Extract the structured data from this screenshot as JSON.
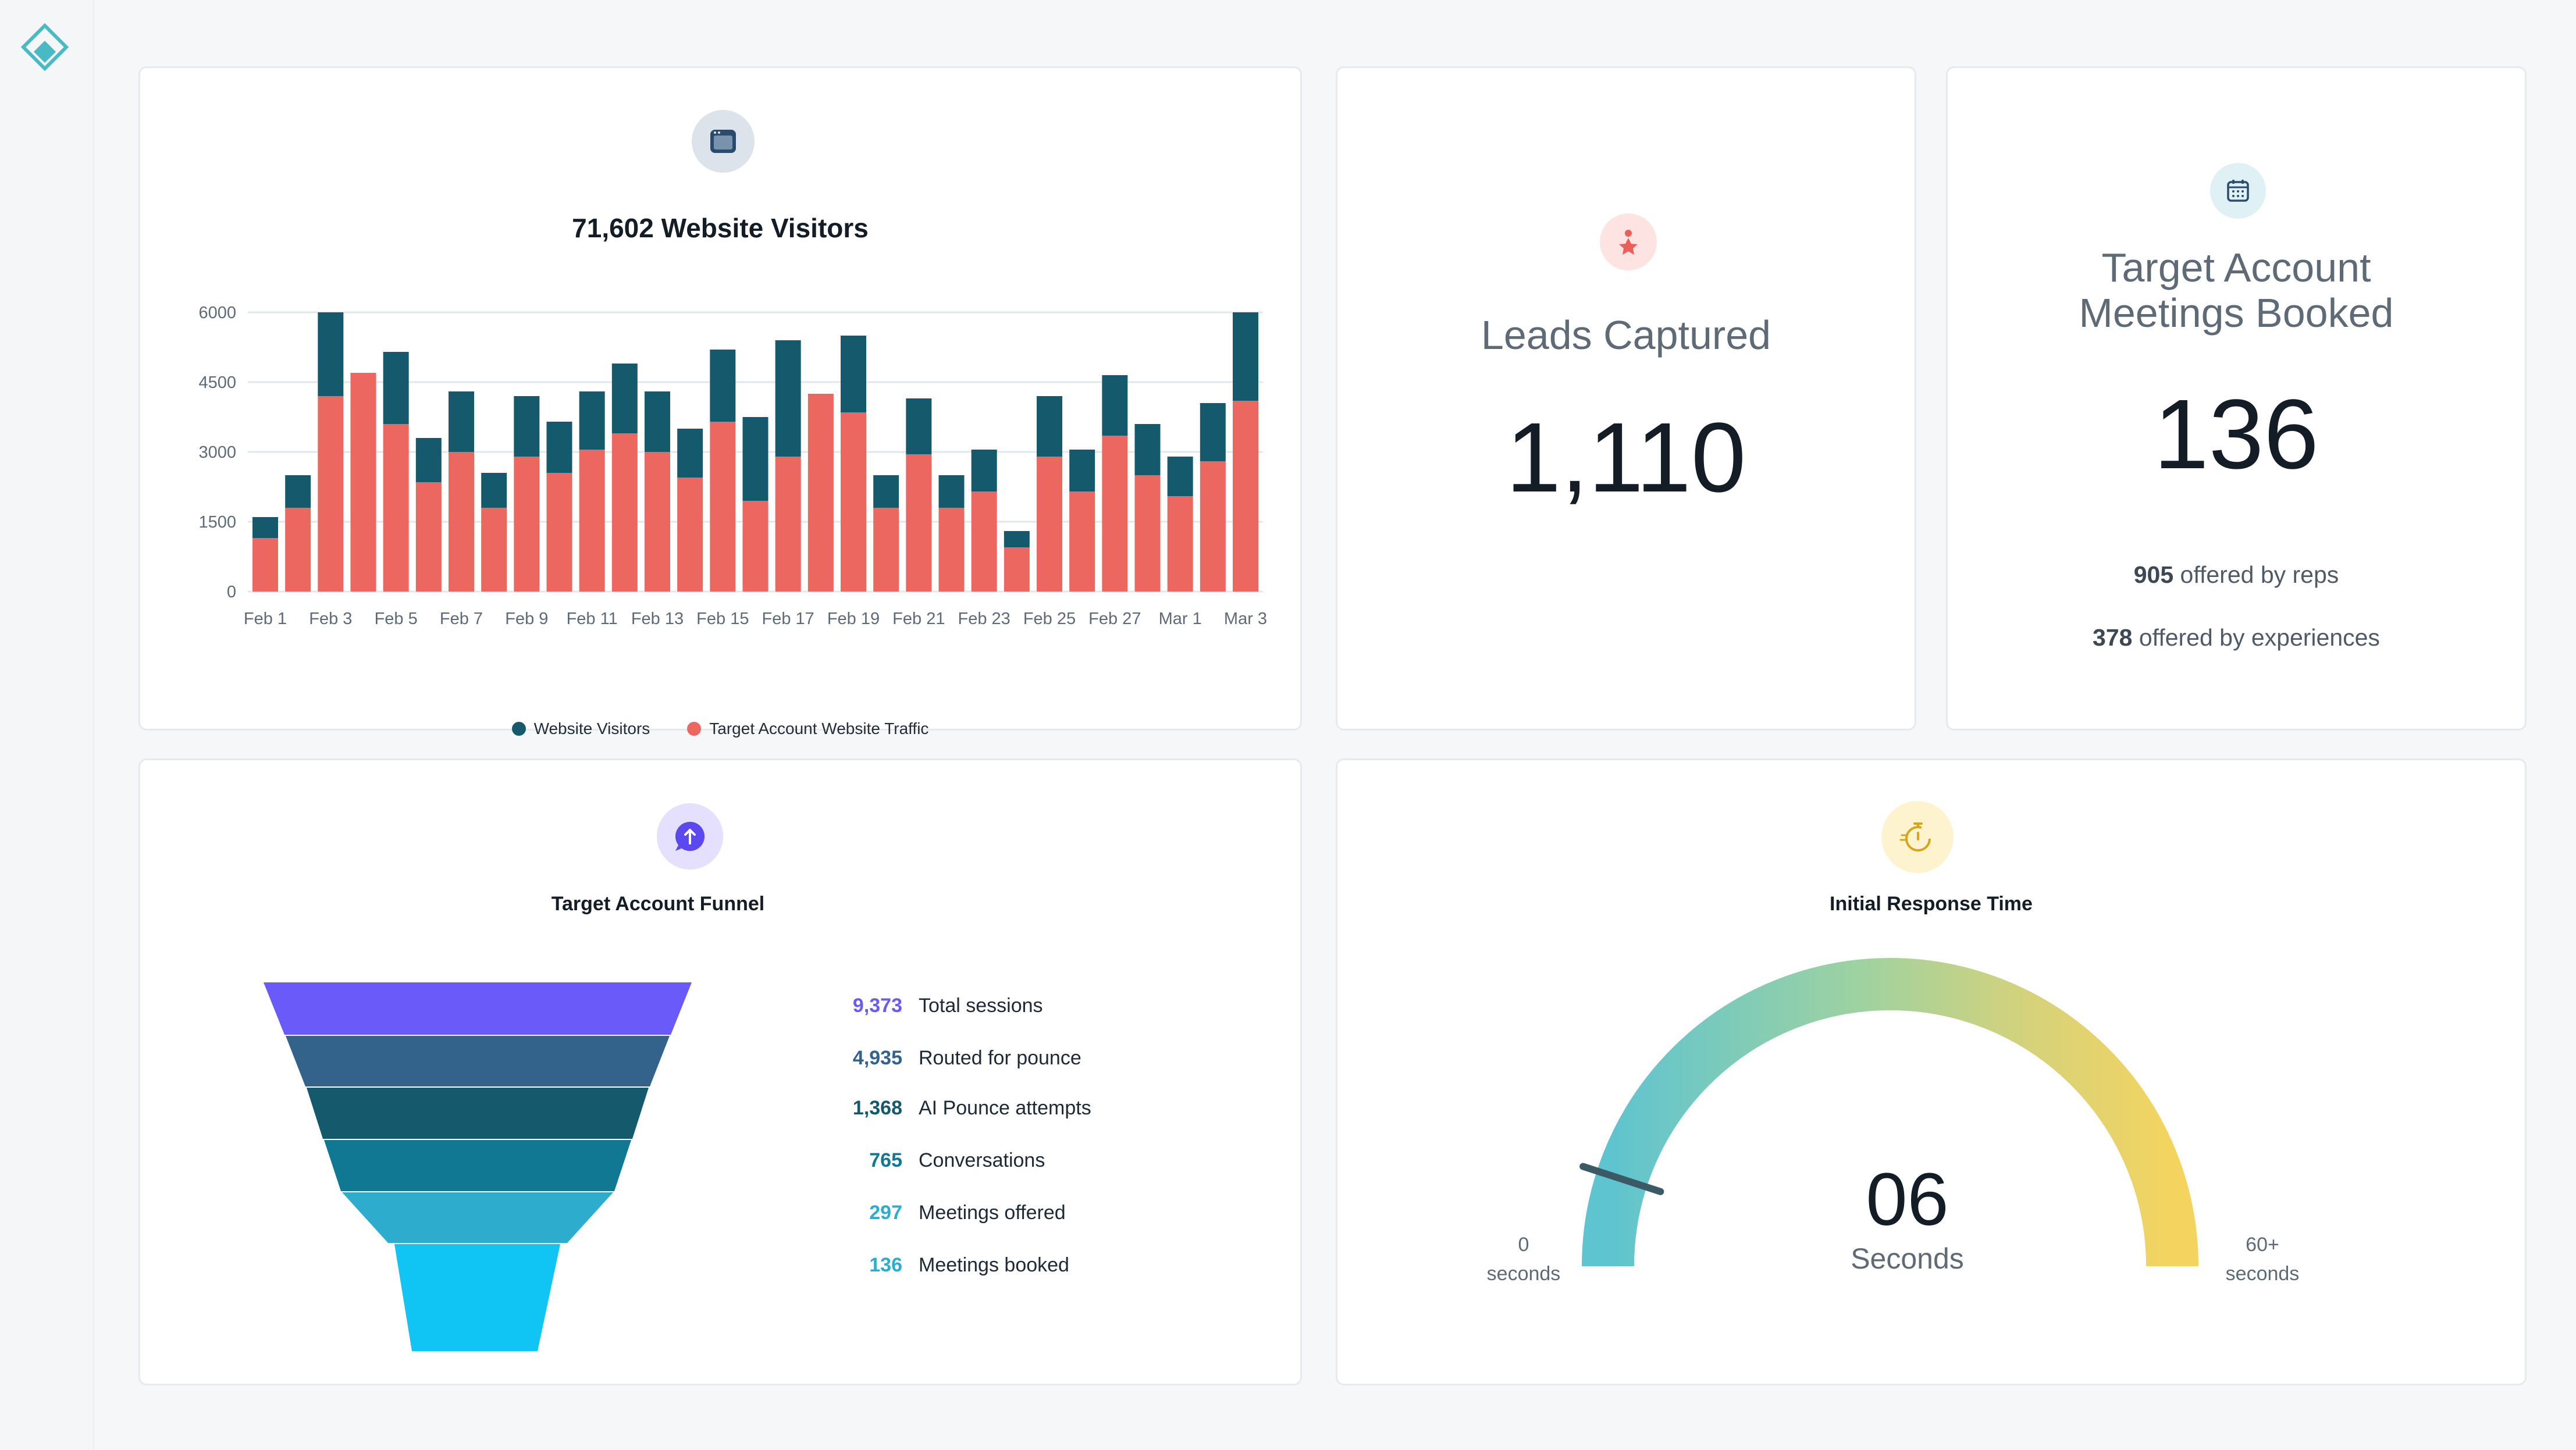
{
  "visitors_card": {
    "title": "71,602 Website Visitors",
    "icon": "browser-window-icon",
    "legend": [
      {
        "label": "Website Visitors",
        "color": "#155a6c"
      },
      {
        "label": "Target Account Website Traffic",
        "color": "#eb6760"
      }
    ]
  },
  "chart_data": {
    "type": "bar",
    "stacked": true,
    "x_tick_labels": [
      "Feb 1",
      "Feb 3",
      "Feb 5",
      "Feb 7",
      "Feb 9",
      "Feb 11",
      "Feb 13",
      "Feb 15",
      "Feb 17",
      "Feb 19",
      "Feb 21",
      "Feb 23",
      "Feb 25",
      "Feb 27",
      "Mar 1",
      "Mar 3"
    ],
    "categories": [
      "Feb 1",
      "Feb 2",
      "Feb 3",
      "Feb 4",
      "Feb 5",
      "Feb 6",
      "Feb 7",
      "Feb 8",
      "Feb 9",
      "Feb 10",
      "Feb 11",
      "Feb 12",
      "Feb 13",
      "Feb 14",
      "Feb 15",
      "Feb 16",
      "Feb 17",
      "Feb 18",
      "Feb 19",
      "Feb 20",
      "Feb 21",
      "Feb 22",
      "Feb 23",
      "Feb 24",
      "Feb 25",
      "Feb 26",
      "Feb 27",
      "Feb 28",
      "Mar 1",
      "Mar 2",
      "Mar 3"
    ],
    "y_ticks": [
      "6000",
      "4500",
      "3000",
      "1500",
      "0"
    ],
    "ylim": [
      0,
      6000
    ],
    "grid": true,
    "series": [
      {
        "name": "Target Account Website Traffic",
        "color": "#eb6760",
        "values": [
          1150,
          1800,
          4200,
          4700,
          3600,
          2350,
          3000,
          1800,
          2900,
          2550,
          3050,
          3400,
          3000,
          2450,
          3650,
          1950,
          2900,
          4250,
          3850,
          1800,
          2950,
          1800,
          2150,
          950,
          2900,
          2150,
          3350,
          2500,
          2050,
          2800,
          4100
        ]
      },
      {
        "name": "Website Visitors",
        "color": "#155a6c",
        "values": [
          450,
          700,
          1800,
          0,
          1550,
          950,
          1300,
          750,
          1300,
          1100,
          1250,
          1500,
          1300,
          1050,
          1550,
          1800,
          2500,
          0,
          1650,
          700,
          1200,
          700,
          900,
          350,
          1300,
          900,
          1300,
          1100,
          850,
          1250,
          1900
        ]
      }
    ]
  },
  "leads_card": {
    "title": "Leads Captured",
    "value": "1,110",
    "icon": "person-star-icon"
  },
  "meetings_card": {
    "title_line1": "Target Account",
    "title_line2": "Meetings Booked",
    "value": "136",
    "reps_value": "905",
    "reps_label": " offered by reps",
    "exp_value": "378",
    "exp_label": " offered by experiences",
    "icon": "calendar-icon"
  },
  "funnel_card": {
    "title": "Target Account Funnel",
    "icon": "arrow-up-chat-icon",
    "stages": [
      {
        "value": "9,373",
        "label": "Total sessions",
        "color": "#6a5af9"
      },
      {
        "value": "4,935",
        "label": "Routed for pounce",
        "color": "#33628a"
      },
      {
        "value": "1,368",
        "label": "AI Pounce attempts",
        "color": "#155a6c"
      },
      {
        "value": "765",
        "label": "Conversations",
        "color": "#117894"
      },
      {
        "value": "297",
        "label": "Meetings offered",
        "color": "#2eaccd"
      },
      {
        "value": "136",
        "label": "Meetings booked",
        "color": "#10c5f4"
      }
    ]
  },
  "response_card": {
    "title": "Initial Response Time",
    "icon": "stopwatch-icon",
    "value": "06",
    "unit": "Seconds",
    "min_value": "0",
    "min_unit": "seconds",
    "max_value": "60+",
    "max_unit": "seconds",
    "gauge_fraction": 0.1
  }
}
